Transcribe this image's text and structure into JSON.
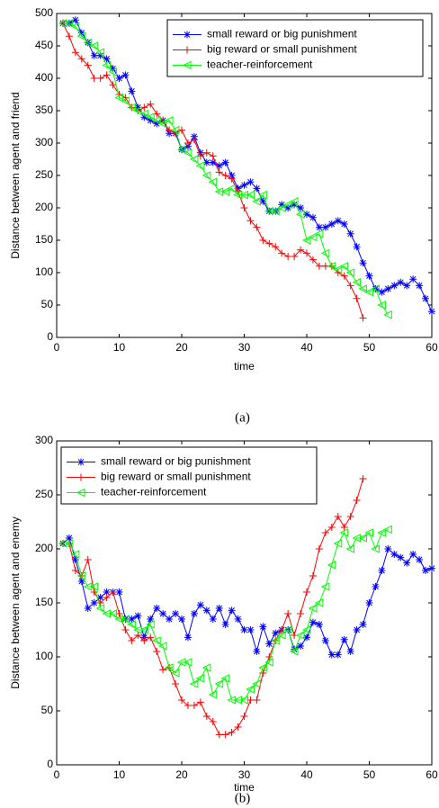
{
  "chart_data": [
    {
      "type": "line",
      "caption": "(a)",
      "xlabel": "time",
      "ylabel": "Distance between agent and friend",
      "xlim": [
        0,
        60
      ],
      "ylim": [
        0,
        500
      ],
      "xticks": [
        0,
        10,
        20,
        30,
        40,
        50,
        60
      ],
      "yticks": [
        0,
        50,
        100,
        150,
        200,
        250,
        300,
        350,
        400,
        450,
        500
      ],
      "legend": "upper right",
      "series": [
        {
          "name": "small reward or big punishment",
          "color": "#0000ff",
          "marker": "*",
          "x": [
            1,
            2,
            3,
            4,
            5,
            6,
            7,
            8,
            9,
            10,
            11,
            12,
            13,
            14,
            15,
            16,
            17,
            18,
            19,
            20,
            21,
            22,
            23,
            24,
            25,
            26,
            27,
            28,
            29,
            30,
            31,
            32,
            33,
            34,
            35,
            36,
            37,
            38,
            39,
            40,
            41,
            42,
            43,
            44,
            45,
            46,
            47,
            48,
            49,
            50,
            51,
            52,
            53,
            54,
            55,
            56,
            57,
            58,
            59,
            60
          ],
          "values": [
            485,
            485,
            490,
            470,
            455,
            435,
            435,
            430,
            415,
            400,
            405,
            380,
            355,
            340,
            335,
            330,
            335,
            315,
            315,
            290,
            295,
            310,
            285,
            270,
            270,
            265,
            270,
            250,
            230,
            235,
            240,
            230,
            210,
            195,
            195,
            205,
            200,
            205,
            200,
            190,
            185,
            170,
            170,
            175,
            180,
            175,
            160,
            140,
            115,
            95,
            75,
            70,
            75,
            80,
            85,
            80,
            90,
            80,
            60,
            40
          ]
        },
        {
          "name": "big reward or small punishment",
          "color": "#ff0000",
          "marker": "+",
          "x": [
            1,
            2,
            3,
            4,
            5,
            6,
            7,
            8,
            9,
            10,
            11,
            12,
            13,
            14,
            15,
            16,
            17,
            18,
            19,
            20,
            21,
            22,
            23,
            24,
            25,
            26,
            27,
            28,
            29,
            30,
            31,
            32,
            33,
            34,
            35,
            36,
            37,
            38,
            39,
            40,
            41,
            42,
            43,
            44,
            45,
            46,
            47,
            48,
            49
          ],
          "values": [
            485,
            465,
            440,
            430,
            420,
            400,
            400,
            405,
            390,
            375,
            370,
            355,
            350,
            355,
            360,
            345,
            335,
            320,
            315,
            320,
            300,
            305,
            280,
            285,
            280,
            255,
            250,
            245,
            225,
            200,
            180,
            170,
            150,
            145,
            140,
            130,
            125,
            125,
            135,
            130,
            120,
            110,
            110,
            110,
            100,
            95,
            80,
            60,
            30
          ]
        },
        {
          "name": "teacher-reinforcement",
          "color": "#00ff00",
          "marker": "<",
          "x": [
            1,
            2,
            3,
            4,
            5,
            6,
            7,
            8,
            9,
            10,
            11,
            12,
            13,
            14,
            15,
            16,
            17,
            18,
            19,
            20,
            21,
            22,
            23,
            24,
            25,
            26,
            27,
            28,
            29,
            30,
            31,
            32,
            33,
            34,
            35,
            36,
            37,
            38,
            39,
            40,
            41,
            42,
            43,
            44,
            45,
            46,
            47,
            48,
            49,
            50,
            51,
            52,
            53
          ],
          "values": [
            485,
            485,
            480,
            465,
            455,
            450,
            440,
            420,
            410,
            370,
            365,
            355,
            350,
            345,
            340,
            335,
            330,
            335,
            320,
            290,
            285,
            275,
            265,
            250,
            240,
            225,
            225,
            230,
            220,
            220,
            220,
            210,
            220,
            195,
            195,
            200,
            205,
            210,
            190,
            150,
            155,
            160,
            130,
            110,
            105,
            110,
            100,
            85,
            75,
            70,
            75,
            50,
            35
          ]
        }
      ]
    },
    {
      "type": "line",
      "caption": "(b)",
      "xlabel": "time",
      "ylabel": "Distance between agent and enemy",
      "xlim": [
        0,
        60
      ],
      "ylim": [
        0,
        300
      ],
      "xticks": [
        0,
        10,
        20,
        30,
        40,
        50,
        60
      ],
      "yticks": [
        0,
        50,
        100,
        150,
        200,
        250,
        300
      ],
      "legend": "upper left",
      "series": [
        {
          "name": "small reward or big punishment",
          "color": "#0000ff",
          "marker": "*",
          "x": [
            1,
            2,
            3,
            4,
            5,
            6,
            7,
            8,
            9,
            10,
            11,
            12,
            13,
            14,
            15,
            16,
            17,
            18,
            19,
            20,
            21,
            22,
            23,
            24,
            25,
            26,
            27,
            28,
            29,
            30,
            31,
            32,
            33,
            34,
            35,
            36,
            37,
            38,
            39,
            40,
            41,
            42,
            43,
            44,
            45,
            46,
            47,
            48,
            49,
            50,
            51,
            52,
            53,
            54,
            55,
            56,
            57,
            58,
            59,
            60
          ],
          "values": [
            205,
            210,
            190,
            170,
            145,
            150,
            155,
            160,
            160,
            160,
            135,
            135,
            138,
            118,
            135,
            145,
            140,
            135,
            140,
            135,
            118,
            140,
            148,
            143,
            135,
            145,
            130,
            143,
            135,
            125,
            125,
            105,
            128,
            112,
            122,
            125,
            125,
            107,
            110,
            118,
            132,
            130,
            115,
            102,
            102,
            116,
            105,
            125,
            130,
            150,
            165,
            180,
            200,
            195,
            192,
            187,
            195,
            190,
            180,
            182
          ]
        },
        {
          "name": "big reward or small punishment",
          "color": "#ff0000",
          "marker": "+",
          "x": [
            1,
            2,
            3,
            4,
            5,
            6,
            7,
            8,
            9,
            10,
            11,
            12,
            13,
            14,
            15,
            16,
            17,
            18,
            19,
            20,
            21,
            22,
            23,
            24,
            25,
            26,
            27,
            28,
            29,
            30,
            31,
            32,
            33,
            34,
            35,
            36,
            37,
            38,
            39,
            40,
            41,
            42,
            43,
            44,
            45,
            46,
            47,
            48,
            49
          ],
          "values": [
            205,
            205,
            180,
            175,
            190,
            160,
            150,
            155,
            160,
            140,
            125,
            115,
            120,
            115,
            118,
            105,
            88,
            90,
            75,
            60,
            55,
            55,
            58,
            45,
            40,
            28,
            28,
            30,
            35,
            45,
            60,
            60,
            85,
            100,
            115,
            125,
            140,
            120,
            140,
            160,
            175,
            200,
            215,
            220,
            230,
            220,
            230,
            245,
            265
          ]
        },
        {
          "name": "teacher-reinforcement",
          "color": "#00ff00",
          "marker": "<",
          "x": [
            1,
            2,
            3,
            4,
            5,
            6,
            7,
            8,
            9,
            10,
            11,
            12,
            13,
            14,
            15,
            16,
            17,
            18,
            19,
            20,
            21,
            22,
            23,
            24,
            25,
            26,
            27,
            28,
            29,
            30,
            31,
            32,
            33,
            34,
            35,
            36,
            37,
            38,
            39,
            40,
            41,
            42,
            43,
            44,
            45,
            46,
            47,
            48,
            49,
            50,
            51,
            52,
            53
          ],
          "values": [
            205,
            205,
            195,
            175,
            165,
            165,
            145,
            140,
            140,
            135,
            135,
            130,
            125,
            125,
            130,
            115,
            110,
            90,
            85,
            95,
            95,
            75,
            80,
            90,
            65,
            75,
            80,
            60,
            60,
            60,
            70,
            75,
            90,
            95,
            115,
            120,
            125,
            105,
            120,
            125,
            145,
            150,
            165,
            185,
            205,
            215,
            200,
            210,
            210,
            215,
            200,
            215,
            218
          ]
        }
      ]
    }
  ]
}
